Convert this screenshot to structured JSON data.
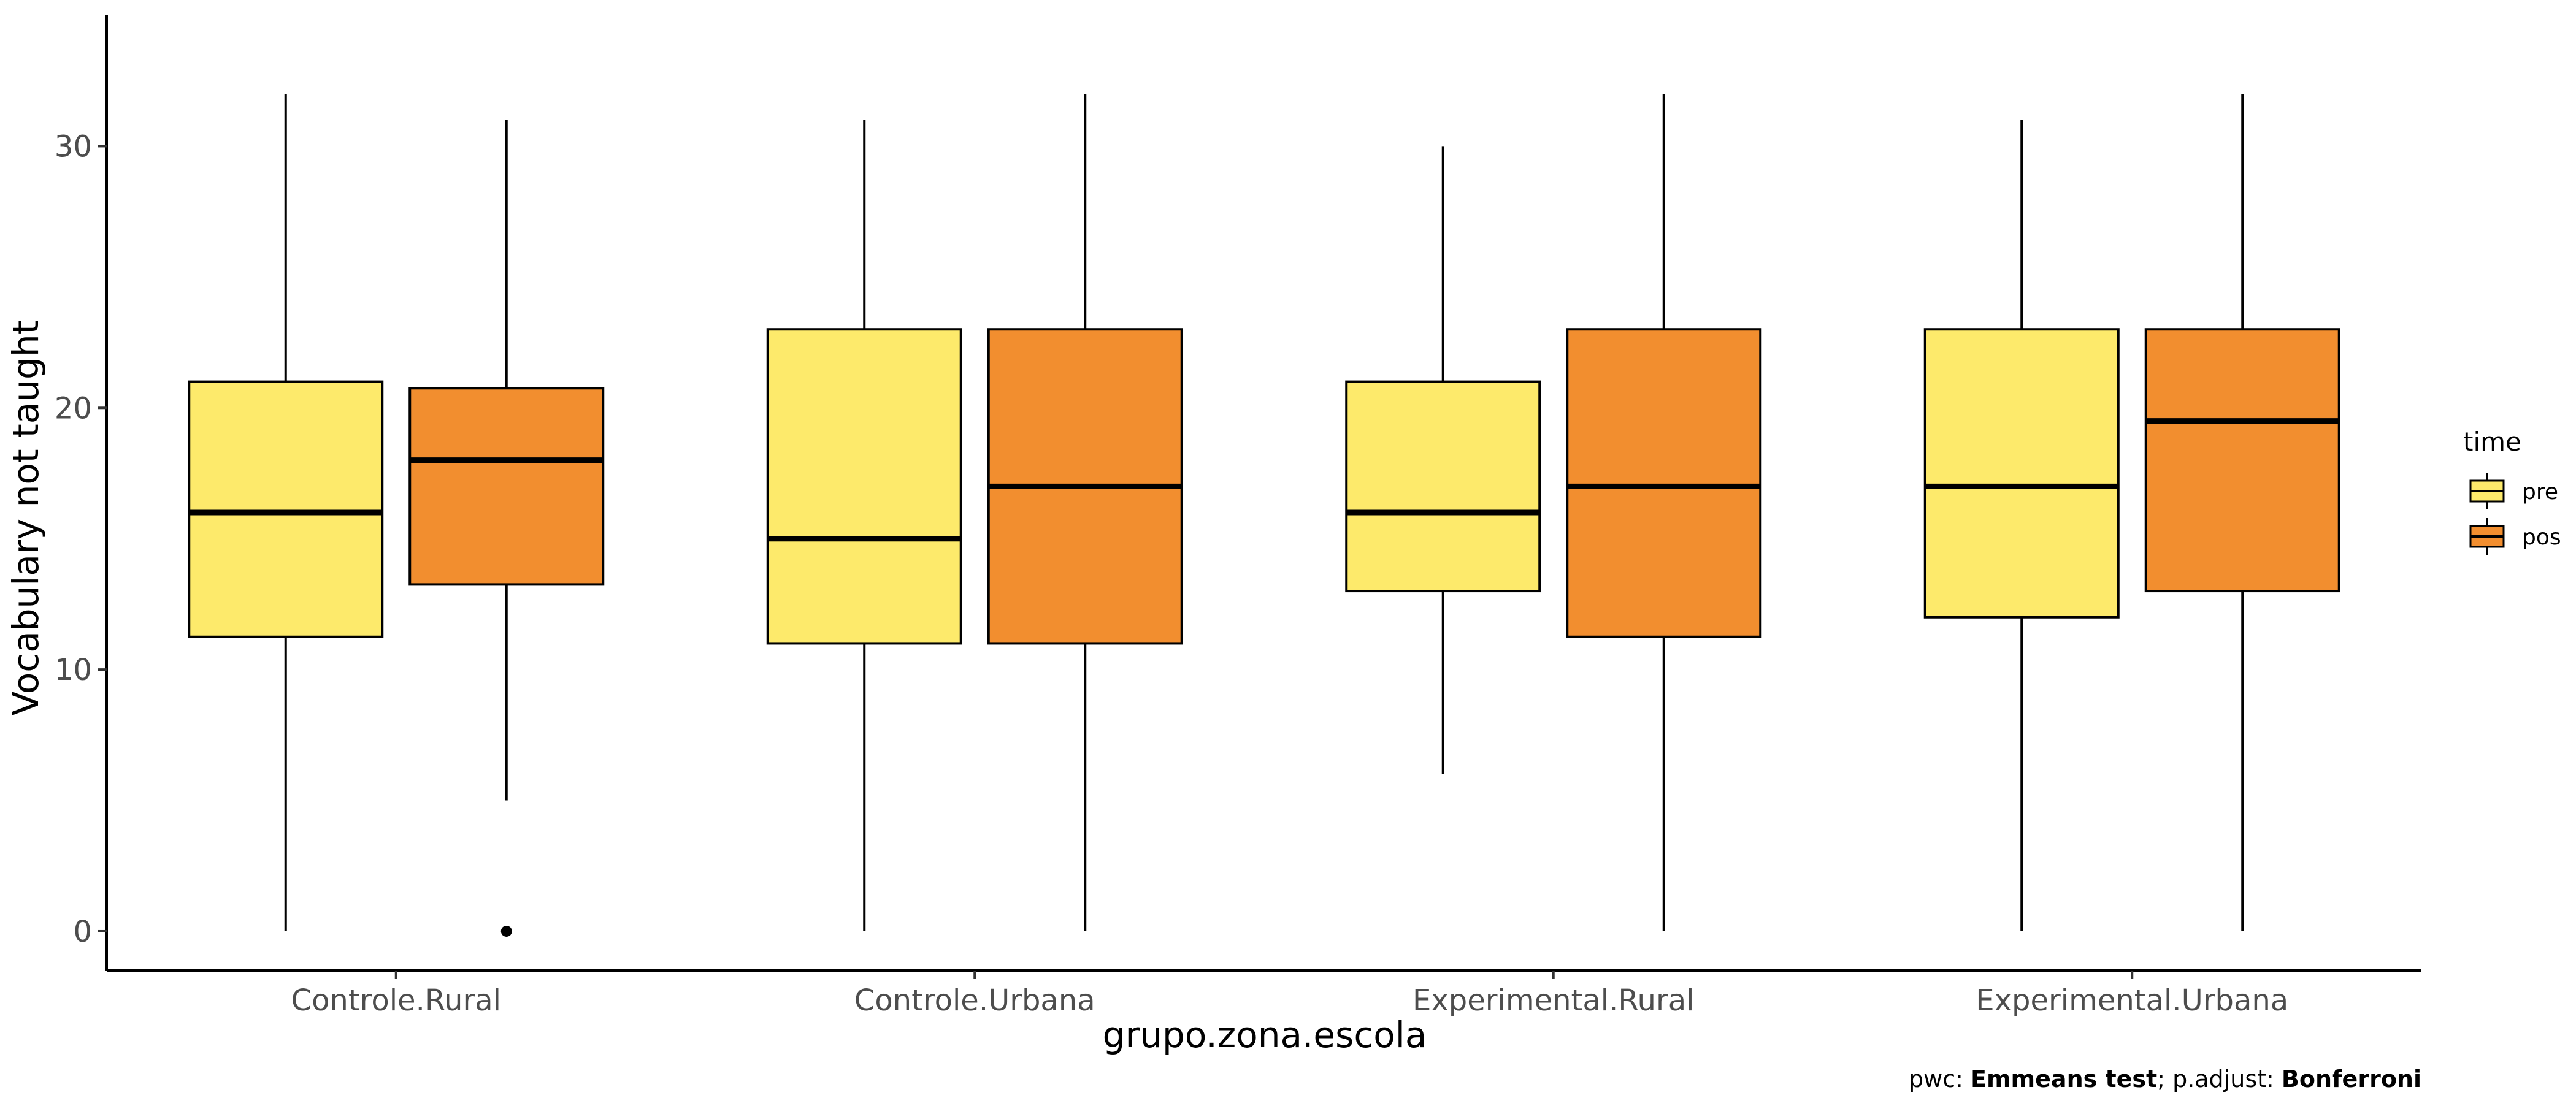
{
  "chart_data": {
    "type": "boxplot",
    "xlabel": "grupo.zona.escola",
    "ylabel": "Vocabulary not taught",
    "categories": [
      "Controle.Rural",
      "Controle.Urbana",
      "Experimental.Rural",
      "Experimental.Urbana"
    ],
    "ylim": [
      -1.5,
      35
    ],
    "yticks": [
      0,
      10,
      20,
      30
    ],
    "grid": false,
    "legend": {
      "title": "time",
      "position": "right",
      "entries": [
        {
          "label": "pre",
          "color": "#FDEA6B"
        },
        {
          "label": "pos",
          "color": "#F28E2F"
        }
      ]
    },
    "series": [
      {
        "name": "pre",
        "color": "#FDEA6B",
        "boxes": [
          {
            "min": 0,
            "q1": 11.25,
            "median": 16,
            "q3": 21,
            "max": 32,
            "outliers": []
          },
          {
            "min": 0,
            "q1": 11,
            "median": 15,
            "q3": 23,
            "max": 31,
            "outliers": []
          },
          {
            "min": 6,
            "q1": 13,
            "median": 16,
            "q3": 21,
            "max": 30,
            "outliers": []
          },
          {
            "min": 0,
            "q1": 12,
            "median": 17,
            "q3": 23,
            "max": 31,
            "outliers": []
          }
        ]
      },
      {
        "name": "pos",
        "color": "#F28E2F",
        "boxes": [
          {
            "min": 5,
            "q1": 13.25,
            "median": 18,
            "q3": 20.75,
            "max": 31,
            "outliers": [
              0
            ]
          },
          {
            "min": 0,
            "q1": 11,
            "median": 17,
            "q3": 23,
            "max": 32,
            "outliers": []
          },
          {
            "min": 0,
            "q1": 11.25,
            "median": 17,
            "q3": 23,
            "max": 32,
            "outliers": []
          },
          {
            "min": 0,
            "q1": 13,
            "median": 19.5,
            "q3": 23,
            "max": 32,
            "outliers": []
          }
        ]
      }
    ],
    "caption": {
      "parts": [
        {
          "text": "pwc: ",
          "bold": false
        },
        {
          "text": "Emmeans test",
          "bold": true
        },
        {
          "text": "; p.adjust: ",
          "bold": false
        },
        {
          "text": "Bonferroni",
          "bold": true
        }
      ]
    }
  }
}
